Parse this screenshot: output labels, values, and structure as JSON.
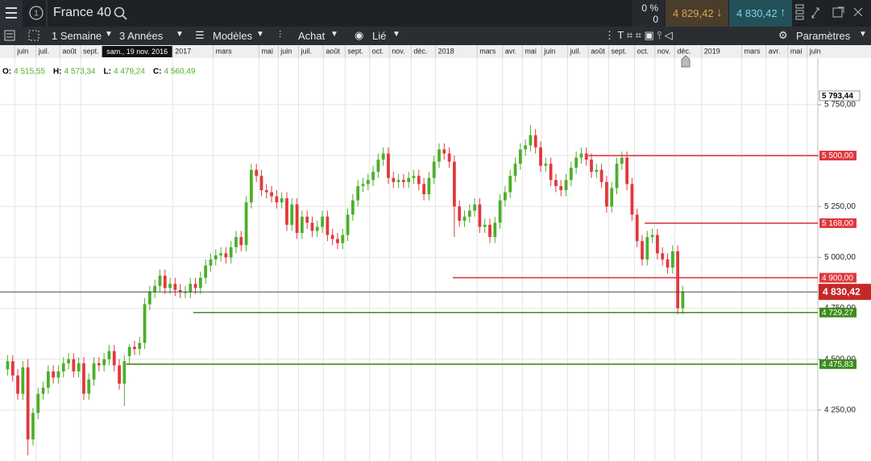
{
  "header": {
    "instrument": "France 40",
    "change_pct": "0 %",
    "change": "0",
    "sell": "4 829,42",
    "buy": "4 830,42"
  },
  "toolbar": {
    "interval": "1 Semaine",
    "range": "3 Années",
    "templates": "Modèles",
    "trade": "Achat",
    "link": "Lié",
    "settings": "Paramètres"
  },
  "chart_data": {
    "type": "candlestick",
    "ohlc": [
      [
        4450,
        4520,
        4420,
        4490
      ],
      [
        4490,
        4520,
        4390,
        4420
      ],
      [
        4420,
        4450,
        4300,
        4330
      ],
      [
        4330,
        4490,
        4300,
        4460
      ],
      [
        4460,
        4500,
        4028,
        4106
      ],
      [
        4106,
        4260,
        4076,
        4236
      ],
      [
        4236,
        4360,
        4206,
        4330
      ],
      [
        4330,
        4390,
        4300,
        4360
      ],
      [
        4360,
        4470,
        4330,
        4440
      ],
      [
        4440,
        4470,
        4380,
        4410
      ],
      [
        4410,
        4470,
        4380,
        4440
      ],
      [
        4440,
        4510,
        4410,
        4480
      ],
      [
        4480,
        4530,
        4450,
        4500
      ],
      [
        4500,
        4530,
        4410,
        4440
      ],
      [
        4440,
        4510,
        4410,
        4480
      ],
      [
        4480,
        4510,
        4300,
        4330
      ],
      [
        4330,
        4430,
        4300,
        4400
      ],
      [
        4400,
        4510,
        4370,
        4480
      ],
      [
        4480,
        4510,
        4440,
        4470
      ],
      [
        4470,
        4530,
        4440,
        4500
      ],
      [
        4500,
        4570,
        4470,
        4540
      ],
      [
        4540,
        4570,
        4440,
        4470
      ],
      [
        4470,
        4500,
        4350,
        4380
      ],
      [
        4380,
        4520,
        4270,
        4490
      ],
      [
        4515.55,
        4573.34,
        4479.24,
        4560.49
      ],
      [
        4560.49,
        4590,
        4520,
        4550
      ],
      [
        4550,
        4610,
        4520,
        4580
      ],
      [
        4580,
        4800,
        4550,
        4770
      ],
      [
        4770,
        4860,
        4740,
        4830
      ],
      [
        4830,
        4890,
        4800,
        4860
      ],
      [
        4860,
        4940,
        4830,
        4910
      ],
      [
        4910,
        4940,
        4820,
        4850
      ],
      [
        4850,
        4900,
        4820,
        4870
      ],
      [
        4870,
        4900,
        4810,
        4840
      ],
      [
        4840,
        4870,
        4800,
        4830
      ],
      [
        4830,
        4860,
        4800,
        4830
      ],
      [
        4830,
        4900,
        4800,
        4870
      ],
      [
        4870,
        4900,
        4820,
        4850
      ],
      [
        4850,
        4930,
        4820,
        4900
      ],
      [
        4900,
        4990,
        4870,
        4960
      ],
      [
        4960,
        5020,
        4930,
        4990
      ],
      [
        4990,
        5040,
        4960,
        5010
      ],
      [
        5010,
        5050,
        4980,
        5020
      ],
      [
        5020,
        5050,
        4970,
        5000
      ],
      [
        5000,
        5080,
        4970,
        5050
      ],
      [
        5050,
        5130,
        5020,
        5100
      ],
      [
        5100,
        5130,
        5030,
        5060
      ],
      [
        5060,
        5300,
        5030,
        5270
      ],
      [
        5270,
        5460,
        5240,
        5430
      ],
      [
        5430,
        5460,
        5370,
        5400
      ],
      [
        5400,
        5430,
        5300,
        5330
      ],
      [
        5330,
        5360,
        5290,
        5320
      ],
      [
        5320,
        5350,
        5270,
        5300
      ],
      [
        5300,
        5330,
        5240,
        5270
      ],
      [
        5270,
        5320,
        5240,
        5290
      ],
      [
        5290,
        5320,
        5130,
        5160
      ],
      [
        5160,
        5290,
        5130,
        5260
      ],
      [
        5260,
        5290,
        5090,
        5120
      ],
      [
        5120,
        5230,
        5090,
        5200
      ],
      [
        5200,
        5230,
        5140,
        5170
      ],
      [
        5170,
        5200,
        5100,
        5130
      ],
      [
        5130,
        5180,
        5100,
        5150
      ],
      [
        5150,
        5230,
        5120,
        5200
      ],
      [
        5200,
        5230,
        5080,
        5110
      ],
      [
        5110,
        5140,
        5060,
        5090
      ],
      [
        5090,
        5120,
        5040,
        5070
      ],
      [
        5070,
        5140,
        5040,
        5110
      ],
      [
        5110,
        5240,
        5080,
        5210
      ],
      [
        5210,
        5310,
        5180,
        5280
      ],
      [
        5280,
        5380,
        5250,
        5350
      ],
      [
        5350,
        5390,
        5320,
        5360
      ],
      [
        5360,
        5410,
        5330,
        5380
      ],
      [
        5380,
        5450,
        5350,
        5420
      ],
      [
        5420,
        5510,
        5390,
        5480
      ],
      [
        5480,
        5540,
        5450,
        5510
      ],
      [
        5510,
        5540,
        5360,
        5390
      ],
      [
        5390,
        5420,
        5340,
        5370
      ],
      [
        5370,
        5410,
        5340,
        5380
      ],
      [
        5380,
        5410,
        5340,
        5370
      ],
      [
        5370,
        5420,
        5340,
        5390
      ],
      [
        5390,
        5430,
        5360,
        5400
      ],
      [
        5400,
        5430,
        5330,
        5360
      ],
      [
        5360,
        5390,
        5280,
        5310
      ],
      [
        5310,
        5420,
        5280,
        5390
      ],
      [
        5390,
        5500,
        5360,
        5470
      ],
      [
        5470,
        5560,
        5440,
        5530
      ],
      [
        5530,
        5560,
        5480,
        5510
      ],
      [
        5510,
        5540,
        5440,
        5470
      ],
      [
        5470,
        5500,
        5100,
        5250
      ],
      [
        5250,
        5280,
        5150,
        5180
      ],
      [
        5180,
        5230,
        5150,
        5200
      ],
      [
        5200,
        5260,
        5170,
        5230
      ],
      [
        5230,
        5290,
        5200,
        5260
      ],
      [
        5260,
        5290,
        5120,
        5150
      ],
      [
        5150,
        5190,
        5120,
        5160
      ],
      [
        5160,
        5190,
        5070,
        5100
      ],
      [
        5100,
        5200,
        5070,
        5170
      ],
      [
        5170,
        5310,
        5140,
        5280
      ],
      [
        5280,
        5350,
        5250,
        5320
      ],
      [
        5320,
        5430,
        5290,
        5400
      ],
      [
        5400,
        5490,
        5370,
        5460
      ],
      [
        5460,
        5560,
        5430,
        5530
      ],
      [
        5530,
        5580,
        5500,
        5550
      ],
      [
        5550,
        5650,
        5520,
        5600
      ],
      [
        5600,
        5630,
        5510,
        5540
      ],
      [
        5540,
        5570,
        5420,
        5450
      ],
      [
        5450,
        5490,
        5420,
        5460
      ],
      [
        5460,
        5490,
        5350,
        5380
      ],
      [
        5380,
        5410,
        5320,
        5350
      ],
      [
        5350,
        5380,
        5300,
        5330
      ],
      [
        5330,
        5410,
        5300,
        5380
      ],
      [
        5380,
        5470,
        5350,
        5440
      ],
      [
        5440,
        5520,
        5410,
        5490
      ],
      [
        5490,
        5540,
        5460,
        5510
      ],
      [
        5510,
        5540,
        5450,
        5480
      ],
      [
        5480,
        5510,
        5390,
        5420
      ],
      [
        5420,
        5460,
        5390,
        5430
      ],
      [
        5430,
        5460,
        5340,
        5370
      ],
      [
        5370,
        5400,
        5220,
        5250
      ],
      [
        5250,
        5370,
        5220,
        5340
      ],
      [
        5340,
        5490,
        5310,
        5460
      ],
      [
        5460,
        5520,
        5430,
        5490
      ],
      [
        5490,
        5520,
        5330,
        5360
      ],
      [
        5360,
        5390,
        5180,
        5210
      ],
      [
        5210,
        5240,
        5050,
        5080
      ],
      [
        5080,
        5110,
        4960,
        4990
      ],
      [
        4990,
        5130,
        4960,
        5100
      ],
      [
        5100,
        5140,
        5070,
        5110
      ],
      [
        5110,
        5140,
        4990,
        5020
      ],
      [
        5020,
        5050,
        4960,
        4990
      ],
      [
        4990,
        5020,
        4920,
        4950
      ],
      [
        4950,
        5060,
        4920,
        5030
      ],
      [
        5030,
        5060,
        4720,
        4750
      ],
      [
        4750,
        4860,
        4720,
        4830.42
      ]
    ],
    "up_color": "#4caf2a",
    "down_color": "#e0393e",
    "xlim": [
      -1.5,
      159.6
    ],
    "xticks": [
      {
        "value": 1.4,
        "label": "juin"
      },
      {
        "value": 5.6,
        "label": "juil."
      },
      {
        "value": 10.3,
        "label": "août"
      },
      {
        "value": 14.4,
        "label": "sept."
      },
      {
        "value": 32.5,
        "label": "2017"
      },
      {
        "value": 40.5,
        "label": "mars"
      },
      {
        "value": 49.5,
        "label": "mai"
      },
      {
        "value": 53.3,
        "label": "juin"
      },
      {
        "value": 57.3,
        "label": "juil."
      },
      {
        "value": 62.2,
        "label": "août"
      },
      {
        "value": 66.5,
        "label": "sept."
      },
      {
        "value": 71.3,
        "label": "oct."
      },
      {
        "value": 75.2,
        "label": "nov."
      },
      {
        "value": 79.5,
        "label": "déc."
      },
      {
        "value": 84.3,
        "label": "2018"
      },
      {
        "value": 92.5,
        "label": "mars"
      },
      {
        "value": 97.5,
        "label": "avr."
      },
      {
        "value": 101.4,
        "label": "mai"
      },
      {
        "value": 105.2,
        "label": "juin"
      },
      {
        "value": 110.3,
        "label": "juil."
      },
      {
        "value": 114.4,
        "label": "août"
      },
      {
        "value": 118.4,
        "label": "sept."
      },
      {
        "value": 123.5,
        "label": "oct."
      },
      {
        "value": 127.5,
        "label": "nov."
      },
      {
        "value": 131.4,
        "label": "déc."
      },
      {
        "value": 136.7,
        "label": "2019"
      },
      {
        "value": 144.6,
        "label": "mars"
      },
      {
        "value": 149.4,
        "label": "avr."
      },
      {
        "value": 153.7,
        "label": "mai"
      },
      {
        "value": 157.5,
        "label": "juin"
      }
    ],
    "ylim": [
      4000,
      5979
    ],
    "yticks": [
      {
        "value": 4250,
        "label": "4 250,00"
      },
      {
        "value": 4500,
        "label": "4 500,00"
      },
      {
        "value": 4750,
        "label": "4 750,00"
      },
      {
        "value": 5000,
        "label": "5 000,00"
      },
      {
        "value": 5250,
        "label": "5 250,00"
      },
      {
        "value": 5500,
        "label": "5 500,00"
      },
      {
        "value": 5750,
        "label": "5 750,00"
      }
    ],
    "grid": true,
    "crosshair": {
      "x": 24,
      "label": "sam., 19 nov. 2016"
    },
    "ohlc_readout": [
      {
        "label": "O:",
        "value": "4 515,55"
      },
      {
        "label": "H:",
        "value": "4 573,34"
      },
      {
        "label": "L:",
        "value": "4 479,24"
      },
      {
        "label": "C:",
        "value": "4 560,49"
      }
    ],
    "high_marker": {
      "value": 5793.44,
      "label": "5 793,44"
    },
    "levels": [
      {
        "value": 5500,
        "label": "5 500,00",
        "color": "#e0393e",
        "from": 114.4
      },
      {
        "value": 5168,
        "label": "5 168,00",
        "color": "#e0393e",
        "from": 125.5
      },
      {
        "value": 4900,
        "label": "4 900,00",
        "color": "#e0393e",
        "from": 87.7
      },
      {
        "value": 4729.27,
        "label": "4 729,27",
        "color": "#3c8c1e",
        "from": 36.6
      },
      {
        "value": 4475.83,
        "label": "4 475,83",
        "color": "#3c8c1e",
        "from": 23.4
      }
    ],
    "price_line": {
      "value": 4830.42,
      "label": "4 830,42",
      "color": "#c62828"
    }
  }
}
